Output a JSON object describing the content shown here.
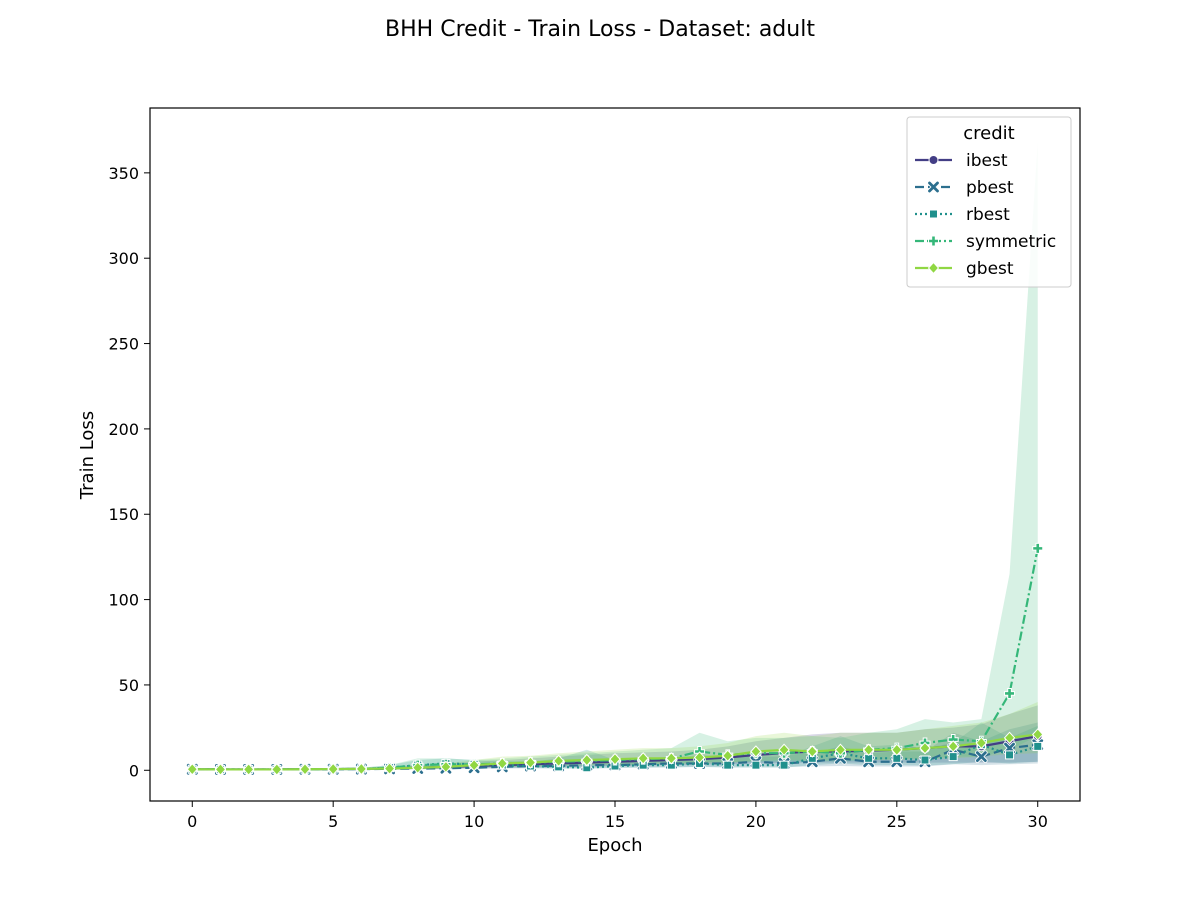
{
  "chart_data": {
    "type": "line",
    "title": "BHH Credit - Train Loss - Dataset: adult",
    "xlabel": "Epoch",
    "ylabel": "Train Loss",
    "xlim": [
      -1.5,
      31.5
    ],
    "ylim": [
      -18,
      388
    ],
    "x_ticks": [
      0,
      5,
      10,
      15,
      20,
      25,
      30
    ],
    "y_ticks": [
      0,
      50,
      100,
      150,
      200,
      250,
      300,
      350
    ],
    "grid": false,
    "legend": {
      "title": "credit",
      "placement": "top-right"
    },
    "x": [
      0,
      1,
      2,
      3,
      4,
      5,
      6,
      7,
      8,
      9,
      10,
      11,
      12,
      13,
      14,
      15,
      16,
      17,
      18,
      19,
      20,
      21,
      22,
      23,
      24,
      25,
      26,
      27,
      28,
      29,
      30
    ],
    "series": [
      {
        "name": "ibest",
        "color": "#433e85",
        "dash": "",
        "marker": "circle",
        "values": [
          0.6,
          0.5,
          0.5,
          0.5,
          0.6,
          0.7,
          0.8,
          1.0,
          1.5,
          2.0,
          2.5,
          3.0,
          3.5,
          4.0,
          4.5,
          5.0,
          5.5,
          6.0,
          6.5,
          7.5,
          9.0,
          10.0,
          11.0,
          11.0,
          11.5,
          12.0,
          13.0,
          14.0,
          14.0,
          17.0,
          20.0
        ],
        "lower": [
          0.3,
          0.3,
          0.3,
          0.3,
          0.3,
          0.4,
          0.5,
          0.6,
          0.8,
          1.0,
          1.3,
          1.5,
          1.8,
          2.0,
          2.3,
          2.5,
          2.8,
          3.0,
          3.3,
          3.6,
          4.0,
          4.3,
          4.5,
          4.5,
          4.5,
          4.5,
          4.5,
          4.5,
          4.5,
          4.5,
          5.0
        ],
        "upper": [
          1.0,
          1.0,
          1.0,
          1.0,
          1.2,
          1.3,
          1.5,
          2.0,
          3.0,
          4.0,
          5.0,
          6.0,
          7.0,
          8.0,
          9.0,
          10.0,
          10.5,
          11.0,
          12.0,
          14.0,
          17.0,
          19.0,
          21.0,
          22.0,
          22.0,
          22.0,
          24.0,
          25.0,
          27.0,
          33.0,
          38.0
        ]
      },
      {
        "name": "pbest",
        "color": "#2c6f8e",
        "dash": "9,4",
        "marker": "x",
        "values": [
          0.6,
          0.5,
          0.5,
          0.5,
          0.6,
          0.6,
          0.7,
          0.8,
          1.0,
          1.2,
          1.5,
          2.0,
          2.5,
          2.5,
          3.0,
          3.0,
          3.5,
          4.0,
          4.0,
          4.0,
          5.0,
          4.0,
          5.0,
          7.0,
          5.0,
          5.0,
          5.0,
          12.0,
          8.0,
          13.0,
          15.0
        ],
        "lower": [
          0.3,
          0.3,
          0.3,
          0.3,
          0.3,
          0.3,
          0.4,
          0.5,
          0.6,
          0.7,
          0.8,
          1.0,
          1.2,
          1.2,
          1.5,
          1.5,
          1.8,
          2.0,
          2.0,
          2.0,
          2.2,
          2.0,
          2.2,
          2.5,
          2.2,
          2.2,
          2.2,
          3.5,
          3.0,
          3.5,
          4.0
        ],
        "upper": [
          1.0,
          1.0,
          1.0,
          1.0,
          1.1,
          1.2,
          1.3,
          1.6,
          2.0,
          2.5,
          3.0,
          4.0,
          5.0,
          5.0,
          6.0,
          6.0,
          7.0,
          8.0,
          8.0,
          8.0,
          10.0,
          9.0,
          10.0,
          14.0,
          10.0,
          11.0,
          11.0,
          22.0,
          17.0,
          24.0,
          28.0
        ]
      },
      {
        "name": "rbest",
        "color": "#20908c",
        "dash": "2,3",
        "marker": "square",
        "values": [
          0.6,
          0.5,
          0.5,
          0.5,
          0.6,
          0.7,
          0.8,
          1.5,
          3.0,
          4.0,
          3.5,
          3.0,
          2.5,
          2.0,
          1.5,
          2.5,
          3.0,
          3.0,
          4.0,
          3.0,
          3.0,
          3.0,
          7.0,
          10.0,
          7.0,
          7.0,
          6.0,
          8.0,
          15.0,
          9.0,
          14.0
        ],
        "lower": [
          0.3,
          0.3,
          0.3,
          0.3,
          0.3,
          0.4,
          0.5,
          0.8,
          1.5,
          2.0,
          1.8,
          1.5,
          1.3,
          1.0,
          0.8,
          1.3,
          1.5,
          1.5,
          2.0,
          1.5,
          1.5,
          1.5,
          3.0,
          4.0,
          3.0,
          3.0,
          2.8,
          3.5,
          5.0,
          4.0,
          5.0
        ],
        "upper": [
          1.0,
          1.0,
          1.0,
          1.0,
          1.2,
          1.3,
          1.5,
          3.0,
          6.0,
          7.0,
          6.0,
          5.5,
          5.0,
          7.0,
          12.0,
          6.0,
          7.0,
          7.0,
          9.0,
          8.0,
          8.0,
          8.0,
          14.0,
          20.0,
          14.0,
          15.0,
          13.0,
          16.0,
          28.0,
          19.0,
          26.0
        ]
      },
      {
        "name": "symmetric",
        "color": "#35b779",
        "dash": "9,3,2,3",
        "marker": "plus",
        "values": [
          0.6,
          0.5,
          0.5,
          0.5,
          0.6,
          0.7,
          0.8,
          1.5,
          3.0,
          3.5,
          3.5,
          4.0,
          4.5,
          5.0,
          5.5,
          6.0,
          6.5,
          7.0,
          11.0,
          9.0,
          10.0,
          10.0,
          11.0,
          10.0,
          12.0,
          13.0,
          16.0,
          18.0,
          17.0,
          45.0,
          130.0
        ],
        "lower": [
          0.3,
          0.3,
          0.3,
          0.3,
          0.3,
          0.4,
          0.5,
          0.8,
          1.5,
          1.8,
          1.8,
          2.0,
          2.2,
          2.5,
          2.8,
          3.0,
          3.3,
          3.5,
          5.0,
          4.5,
          5.0,
          5.0,
          5.5,
          5.0,
          6.0,
          6.5,
          7.0,
          8.0,
          8.0,
          12.0,
          20.0
        ],
        "upper": [
          1.0,
          1.0,
          1.0,
          1.0,
          1.2,
          1.3,
          1.5,
          3.0,
          7.0,
          7.0,
          6.0,
          7.0,
          8.0,
          9.0,
          10.0,
          11.0,
          12.0,
          13.0,
          22.0,
          17.0,
          19.0,
          19.0,
          20.0,
          19.0,
          22.0,
          24.0,
          30.0,
          28.0,
          30.0,
          115.0,
          368.0
        ]
      },
      {
        "name": "gbest",
        "color": "#90d743",
        "dash": "",
        "marker": "diamond",
        "values": [
          0.6,
          0.5,
          0.5,
          0.5,
          0.6,
          0.7,
          0.8,
          1.0,
          1.5,
          2.0,
          3.0,
          4.0,
          4.5,
          5.5,
          6.0,
          6.5,
          7.0,
          7.0,
          7.5,
          8.5,
          11.0,
          12.0,
          11.0,
          12.0,
          12.0,
          12.0,
          13.0,
          14.0,
          16.0,
          19.0,
          21.0
        ],
        "lower": [
          0.3,
          0.3,
          0.3,
          0.3,
          0.3,
          0.4,
          0.5,
          0.6,
          0.8,
          1.0,
          1.5,
          2.0,
          2.2,
          2.8,
          3.0,
          3.3,
          3.5,
          3.5,
          3.8,
          4.3,
          5.5,
          6.0,
          5.5,
          6.0,
          6.0,
          6.0,
          6.5,
          7.0,
          8.0,
          9.5,
          10.0
        ],
        "upper": [
          1.0,
          1.0,
          1.0,
          1.0,
          1.2,
          1.3,
          1.5,
          2.0,
          3.0,
          4.0,
          6.0,
          8.0,
          8.5,
          10.0,
          11.0,
          12.0,
          13.0,
          13.0,
          14.0,
          16.0,
          20.0,
          22.0,
          20.0,
          22.0,
          22.0,
          22.0,
          24.0,
          26.0,
          28.0,
          33.0,
          40.0
        ]
      }
    ]
  }
}
